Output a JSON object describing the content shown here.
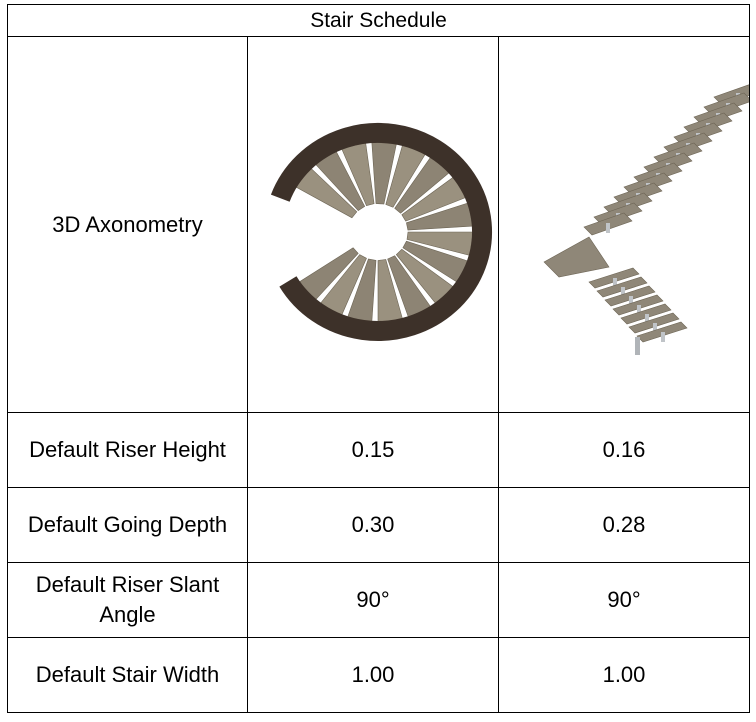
{
  "table": {
    "title": "Stair Schedule",
    "rows": [
      [
        "3D Axonometry"
      ],
      [
        "Default Riser Height",
        "0.15",
        "0.16"
      ],
      [
        "Default Going Depth",
        "0.30",
        "0.28"
      ],
      [
        "Default Riser Slant Angle",
        "90°",
        "90°"
      ],
      [
        "Default Stair Width",
        "1.00",
        "1.00"
      ]
    ]
  }
}
